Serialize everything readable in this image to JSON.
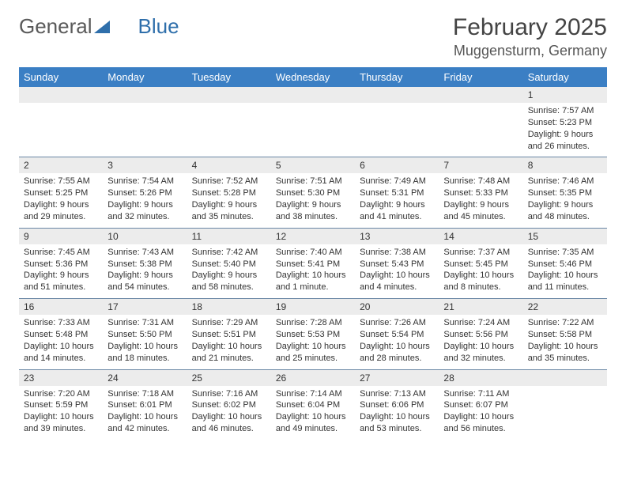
{
  "brand": {
    "part1": "General",
    "part2": "Blue"
  },
  "title": "February 2025",
  "location": "Muggensturm, Germany",
  "colors": {
    "header_bg": "#3b7fc4",
    "header_text": "#ffffff",
    "daynum_bg": "#ececec",
    "row_border": "#6a87a5",
    "text": "#333333",
    "logo_gray": "#5a5a5a",
    "logo_blue": "#2f6fab"
  },
  "days": [
    "Sunday",
    "Monday",
    "Tuesday",
    "Wednesday",
    "Thursday",
    "Friday",
    "Saturday"
  ],
  "weeks": [
    [
      {
        "n": "",
        "sr": "",
        "ss": "",
        "dl": ""
      },
      {
        "n": "",
        "sr": "",
        "ss": "",
        "dl": ""
      },
      {
        "n": "",
        "sr": "",
        "ss": "",
        "dl": ""
      },
      {
        "n": "",
        "sr": "",
        "ss": "",
        "dl": ""
      },
      {
        "n": "",
        "sr": "",
        "ss": "",
        "dl": ""
      },
      {
        "n": "",
        "sr": "",
        "ss": "",
        "dl": ""
      },
      {
        "n": "1",
        "sr": "Sunrise: 7:57 AM",
        "ss": "Sunset: 5:23 PM",
        "dl": "Daylight: 9 hours and 26 minutes."
      }
    ],
    [
      {
        "n": "2",
        "sr": "Sunrise: 7:55 AM",
        "ss": "Sunset: 5:25 PM",
        "dl": "Daylight: 9 hours and 29 minutes."
      },
      {
        "n": "3",
        "sr": "Sunrise: 7:54 AM",
        "ss": "Sunset: 5:26 PM",
        "dl": "Daylight: 9 hours and 32 minutes."
      },
      {
        "n": "4",
        "sr": "Sunrise: 7:52 AM",
        "ss": "Sunset: 5:28 PM",
        "dl": "Daylight: 9 hours and 35 minutes."
      },
      {
        "n": "5",
        "sr": "Sunrise: 7:51 AM",
        "ss": "Sunset: 5:30 PM",
        "dl": "Daylight: 9 hours and 38 minutes."
      },
      {
        "n": "6",
        "sr": "Sunrise: 7:49 AM",
        "ss": "Sunset: 5:31 PM",
        "dl": "Daylight: 9 hours and 41 minutes."
      },
      {
        "n": "7",
        "sr": "Sunrise: 7:48 AM",
        "ss": "Sunset: 5:33 PM",
        "dl": "Daylight: 9 hours and 45 minutes."
      },
      {
        "n": "8",
        "sr": "Sunrise: 7:46 AM",
        "ss": "Sunset: 5:35 PM",
        "dl": "Daylight: 9 hours and 48 minutes."
      }
    ],
    [
      {
        "n": "9",
        "sr": "Sunrise: 7:45 AM",
        "ss": "Sunset: 5:36 PM",
        "dl": "Daylight: 9 hours and 51 minutes."
      },
      {
        "n": "10",
        "sr": "Sunrise: 7:43 AM",
        "ss": "Sunset: 5:38 PM",
        "dl": "Daylight: 9 hours and 54 minutes."
      },
      {
        "n": "11",
        "sr": "Sunrise: 7:42 AM",
        "ss": "Sunset: 5:40 PM",
        "dl": "Daylight: 9 hours and 58 minutes."
      },
      {
        "n": "12",
        "sr": "Sunrise: 7:40 AM",
        "ss": "Sunset: 5:41 PM",
        "dl": "Daylight: 10 hours and 1 minute."
      },
      {
        "n": "13",
        "sr": "Sunrise: 7:38 AM",
        "ss": "Sunset: 5:43 PM",
        "dl": "Daylight: 10 hours and 4 minutes."
      },
      {
        "n": "14",
        "sr": "Sunrise: 7:37 AM",
        "ss": "Sunset: 5:45 PM",
        "dl": "Daylight: 10 hours and 8 minutes."
      },
      {
        "n": "15",
        "sr": "Sunrise: 7:35 AM",
        "ss": "Sunset: 5:46 PM",
        "dl": "Daylight: 10 hours and 11 minutes."
      }
    ],
    [
      {
        "n": "16",
        "sr": "Sunrise: 7:33 AM",
        "ss": "Sunset: 5:48 PM",
        "dl": "Daylight: 10 hours and 14 minutes."
      },
      {
        "n": "17",
        "sr": "Sunrise: 7:31 AM",
        "ss": "Sunset: 5:50 PM",
        "dl": "Daylight: 10 hours and 18 minutes."
      },
      {
        "n": "18",
        "sr": "Sunrise: 7:29 AM",
        "ss": "Sunset: 5:51 PM",
        "dl": "Daylight: 10 hours and 21 minutes."
      },
      {
        "n": "19",
        "sr": "Sunrise: 7:28 AM",
        "ss": "Sunset: 5:53 PM",
        "dl": "Daylight: 10 hours and 25 minutes."
      },
      {
        "n": "20",
        "sr": "Sunrise: 7:26 AM",
        "ss": "Sunset: 5:54 PM",
        "dl": "Daylight: 10 hours and 28 minutes."
      },
      {
        "n": "21",
        "sr": "Sunrise: 7:24 AM",
        "ss": "Sunset: 5:56 PM",
        "dl": "Daylight: 10 hours and 32 minutes."
      },
      {
        "n": "22",
        "sr": "Sunrise: 7:22 AM",
        "ss": "Sunset: 5:58 PM",
        "dl": "Daylight: 10 hours and 35 minutes."
      }
    ],
    [
      {
        "n": "23",
        "sr": "Sunrise: 7:20 AM",
        "ss": "Sunset: 5:59 PM",
        "dl": "Daylight: 10 hours and 39 minutes."
      },
      {
        "n": "24",
        "sr": "Sunrise: 7:18 AM",
        "ss": "Sunset: 6:01 PM",
        "dl": "Daylight: 10 hours and 42 minutes."
      },
      {
        "n": "25",
        "sr": "Sunrise: 7:16 AM",
        "ss": "Sunset: 6:02 PM",
        "dl": "Daylight: 10 hours and 46 minutes."
      },
      {
        "n": "26",
        "sr": "Sunrise: 7:14 AM",
        "ss": "Sunset: 6:04 PM",
        "dl": "Daylight: 10 hours and 49 minutes."
      },
      {
        "n": "27",
        "sr": "Sunrise: 7:13 AM",
        "ss": "Sunset: 6:06 PM",
        "dl": "Daylight: 10 hours and 53 minutes."
      },
      {
        "n": "28",
        "sr": "Sunrise: 7:11 AM",
        "ss": "Sunset: 6:07 PM",
        "dl": "Daylight: 10 hours and 56 minutes."
      },
      {
        "n": "",
        "sr": "",
        "ss": "",
        "dl": ""
      }
    ]
  ]
}
